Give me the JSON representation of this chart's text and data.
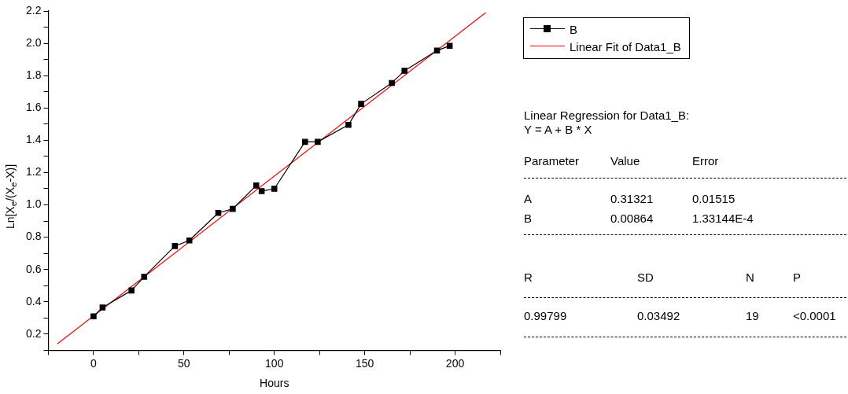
{
  "chart_data": {
    "type": "line",
    "xlabel": "Hours",
    "ylabel": "Ln[X$_{e}$/(X$_{e}$-X)]",
    "xlim": [
      -25,
      225
    ],
    "xticks": [
      {
        "value": -25,
        "label": null
      },
      0,
      {
        "value": 25,
        "label": null
      },
      50,
      {
        "value": 75,
        "label": null
      },
      100,
      {
        "value": 125,
        "label": null
      },
      150,
      {
        "value": 175,
        "label": null
      },
      200,
      {
        "value": 225,
        "label": null
      }
    ],
    "ylim": [
      0.1,
      2.2
    ],
    "yticks": [
      {
        "value": 0.1,
        "label": null
      },
      {
        "value": 0.2,
        "label": "0.2"
      },
      {
        "value": 0.3,
        "label": null
      },
      {
        "value": 0.4,
        "label": "0.4"
      },
      {
        "value": 0.5,
        "label": null
      },
      {
        "value": 0.6,
        "label": "0.6"
      },
      {
        "value": 0.7,
        "label": null
      },
      {
        "value": 0.8,
        "label": "0.8"
      },
      {
        "value": 0.9,
        "label": null
      },
      {
        "value": 1.0,
        "label": "1.0"
      },
      {
        "value": 1.1,
        "label": null
      },
      {
        "value": 1.2,
        "label": "1.2"
      },
      {
        "value": 1.3,
        "label": null
      },
      {
        "value": 1.4,
        "label": "1.4"
      },
      {
        "value": 1.5,
        "label": null
      },
      {
        "value": 1.6,
        "label": "1.6"
      },
      {
        "value": 1.7,
        "label": null
      },
      {
        "value": 1.8,
        "label": "1.8"
      },
      {
        "value": 1.9,
        "label": null
      },
      {
        "value": 2.0,
        "label": "2.0"
      },
      {
        "value": 2.1,
        "label": null
      },
      {
        "value": 2.2,
        "label": "2.2"
      }
    ],
    "x": [
      0,
      5,
      21,
      28,
      45,
      53,
      69,
      77,
      90,
      93,
      100,
      117,
      124,
      141,
      148,
      165,
      172,
      190,
      197
    ],
    "series": [
      {
        "name": "B",
        "color": "#000000",
        "marker": "square",
        "line_style": "solid",
        "values": [
          0.31,
          0.365,
          0.47,
          0.555,
          0.745,
          0.78,
          0.95,
          0.975,
          1.12,
          1.085,
          1.1,
          1.39,
          1.39,
          1.495,
          1.625,
          1.755,
          1.83,
          1.955,
          1.985
        ]
      },
      {
        "name": "Linear Fit of Data1_B",
        "type": "line",
        "color": "#ff0000",
        "marker": "none",
        "line_style": "solid",
        "x": [
          -20,
          217
        ],
        "values": [
          0.14,
          2.19
        ]
      }
    ],
    "legend": "top right",
    "annotations": [
      "Linear Regression for Data1_B:",
      "Y = A + B * X",
      "Parameter",
      "Value",
      "Error",
      "A",
      "0.31321",
      "0.01515",
      "B",
      "0.00864",
      "1.33144E-4",
      "R",
      "SD",
      "N",
      "P",
      "0.99799",
      "0.03492",
      "19",
      "<0.0001"
    ]
  }
}
